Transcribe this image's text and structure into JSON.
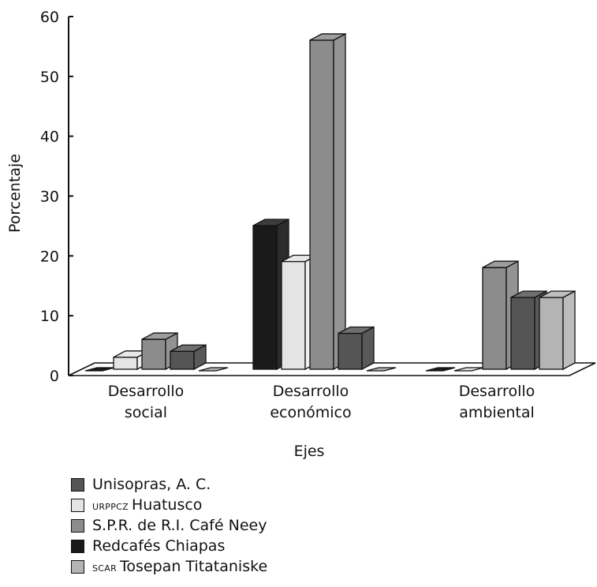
{
  "chart_data": {
    "type": "bar",
    "ylabel": "Porcentaje",
    "xlabel": "Ejes",
    "ylim": [
      0,
      60
    ],
    "yticks": [
      "0",
      "10",
      "20",
      "30",
      "40",
      "50",
      "60"
    ],
    "categories": [
      [
        "Desarrollo",
        "social"
      ],
      [
        "Desarrollo",
        "económico"
      ],
      [
        "Desarrollo",
        "ambiental"
      ]
    ],
    "series": [
      {
        "name": "Redcafés Chiapas",
        "color": "#1a1a1a",
        "values": [
          0,
          24,
          0
        ]
      },
      {
        "name": "URPPCZ Huatusco",
        "color": "#e4e4e4",
        "values": [
          2,
          18,
          0
        ]
      },
      {
        "name": "S.P.R. de R.I. Café Neey",
        "color": "#8c8c8c",
        "values": [
          5,
          55,
          17
        ]
      },
      {
        "name": "Unisopras, A. C.",
        "color": "#555555",
        "values": [
          3,
          6,
          12
        ]
      },
      {
        "name": "SCAR Tosepan Titataniske",
        "color": "#b4b4b4",
        "values": [
          0,
          0,
          12
        ]
      }
    ],
    "legend_order": [
      {
        "prefix": "",
        "text": "Unisopras, A. C.",
        "color": "#555555"
      },
      {
        "prefix": "URPPCZ",
        "text": "Huatusco",
        "color": "#e4e4e4"
      },
      {
        "prefix": "",
        "text": "S.P.R. de R.I. Café Neey",
        "color": "#8c8c8c"
      },
      {
        "prefix": "",
        "text": "Redcafés Chiapas",
        "color": "#1a1a1a"
      },
      {
        "prefix": "SCAR",
        "text": "Tosepan Titataniske",
        "color": "#b4b4b4"
      }
    ],
    "legend_placement": "bottom-left",
    "grid": false
  }
}
